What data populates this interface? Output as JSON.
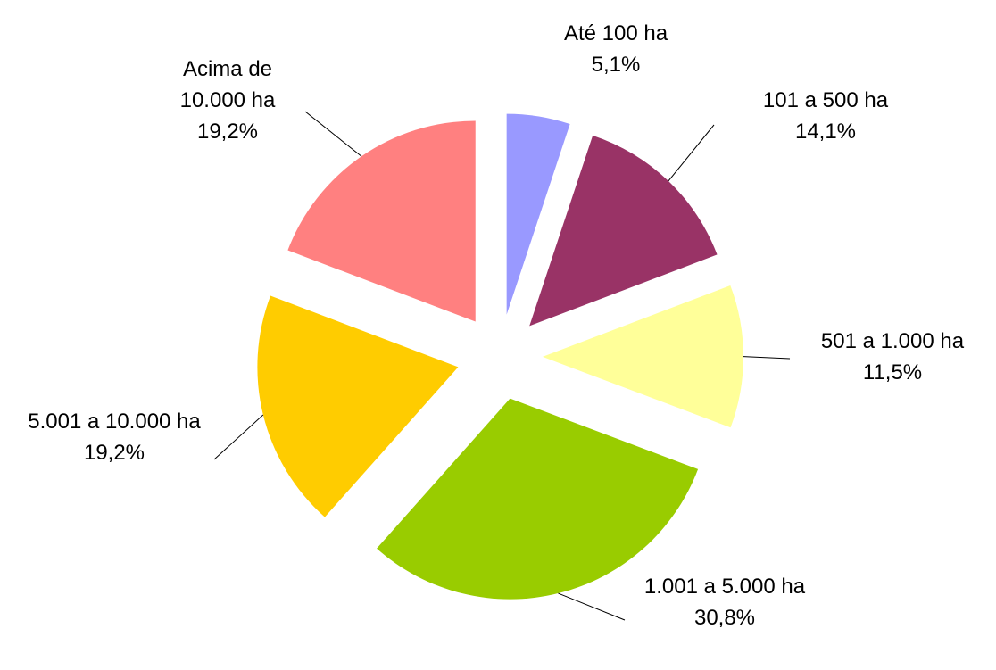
{
  "chart_data": {
    "type": "pie",
    "categories": [
      "Até 100 ha",
      "101 a 500 ha",
      "501 a 1.000 ha",
      "1.001 a 5.000 ha",
      "5.001 a 10.000 ha",
      "Acima de 10.000 ha"
    ],
    "values": [
      5.1,
      14.1,
      11.5,
      30.8,
      19.2,
      19.2
    ],
    "value_labels": [
      "5,1%",
      "14,1%",
      "11,5%",
      "30,8%",
      "19,2%",
      "19,2%"
    ],
    "colors": [
      "#9999ff",
      "#993366",
      "#ffff99",
      "#99cc00",
      "#ffcc00",
      "#ff8080"
    ]
  }
}
